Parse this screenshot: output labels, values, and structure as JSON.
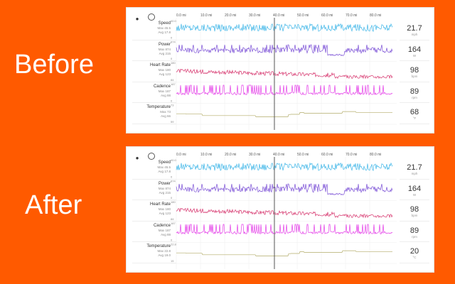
{
  "labels": {
    "before": "Before",
    "after": "After"
  },
  "colors": {
    "background": "#ff5a00",
    "speed": "#3fb6e8",
    "power": "#7a4fd6",
    "heart_rate": "#d6336c",
    "cadence": "#e43ee8",
    "temperature": "#b3ac6a"
  },
  "x_ticks": [
    "0.0 mi",
    "10.0 mi",
    "20.0 mi",
    "30.0 mi",
    "40.0 mi",
    "50.0 mi",
    "60.0 mi",
    "70.0 mi",
    "80.0 mi"
  ],
  "before": {
    "metrics": [
      {
        "name": "Speed",
        "max": "Max 45.5",
        "avg": "Avg 17.8",
        "y_top": "40.0",
        "y_bot": "0",
        "value": "21.7",
        "unit": "mph"
      },
      {
        "name": "Power",
        "max": "Max 874",
        "avg": "Avg 215",
        "y_top": "874",
        "y_bot": "0",
        "value": "164",
        "unit": "W"
      },
      {
        "name": "Heart Rate",
        "max": "Max 180",
        "avg": "Avg 123",
        "y_top": "180",
        "y_bot": "84",
        "value": "98",
        "unit": "bpm"
      },
      {
        "name": "Cadence",
        "max": "Max 187",
        "avg": "Avg 88",
        "y_top": "187",
        "y_bot": "0",
        "value": "89",
        "unit": "rpm"
      },
      {
        "name": "Temperature",
        "max": "Max 73",
        "avg": "Avg 66",
        "y_top": "73",
        "y_bot": "59",
        "value": "68",
        "unit": "°F"
      }
    ]
  },
  "after": {
    "metrics": [
      {
        "name": "Speed",
        "max": "Max 45.5",
        "avg": "Avg 17.8",
        "y_top": "40.0",
        "y_bot": "0",
        "value": "21.7",
        "unit": "mph"
      },
      {
        "name": "Power",
        "max": "Max 874",
        "avg": "Avg 215",
        "y_top": "874",
        "y_bot": "0",
        "value": "164",
        "unit": "W"
      },
      {
        "name": "Heart Rate",
        "max": "Max 180",
        "avg": "Avg 123",
        "y_top": "180",
        "y_bot": "84",
        "value": "98",
        "unit": "bpm"
      },
      {
        "name": "Cadence",
        "max": "Max 187",
        "avg": "Avg 88",
        "y_top": "187",
        "y_bot": "0",
        "value": "89",
        "unit": "rpm"
      },
      {
        "name": "Temperature",
        "max": "Max 22.8",
        "avg": "Avg 19.0",
        "y_top": "22.8",
        "y_bot": "15",
        "value": "20",
        "unit": "°C"
      }
    ]
  }
}
